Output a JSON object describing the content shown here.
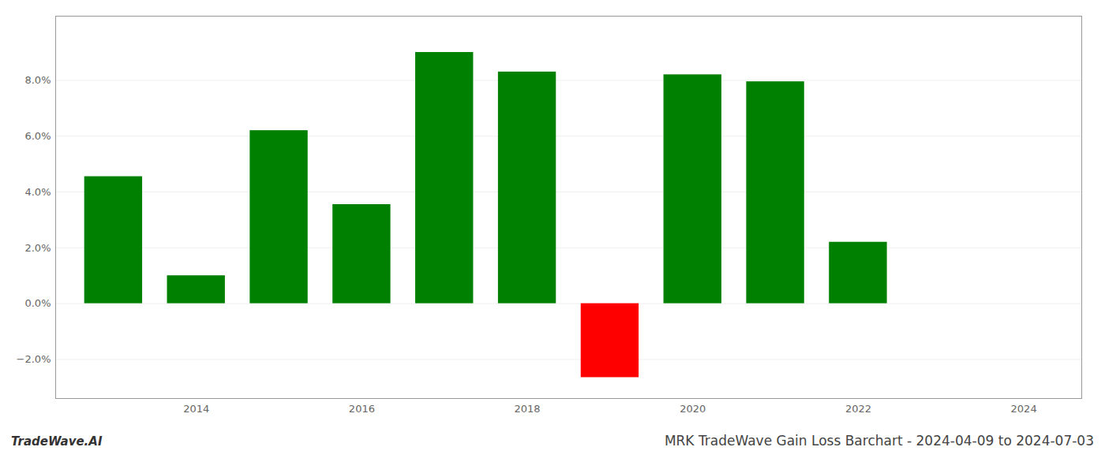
{
  "chart_data": {
    "type": "bar",
    "title": "MRK TradeWave Gain Loss Barchart - 2024-04-09 to 2024-07-03",
    "annotations": [
      "TradeWave.AI"
    ],
    "x": [
      2013,
      2014,
      2015,
      2016,
      2017,
      2018,
      2019,
      2020,
      2021,
      2022,
      2023
    ],
    "values": [
      0.0455,
      0.01,
      0.062,
      0.0355,
      0.09,
      0.083,
      -0.0265,
      0.082,
      0.0795,
      0.022,
      0.0
    ],
    "colors": [
      "#008000",
      "#008000",
      "#008000",
      "#008000",
      "#008000",
      "#008000",
      "#ff0000",
      "#008000",
      "#008000",
      "#008000",
      "#008000"
    ],
    "xlim": [
      2012.3,
      2024.7
    ],
    "xticks": [
      2014,
      2016,
      2018,
      2020,
      2022,
      2024
    ],
    "ylim": [
      -0.034,
      0.103
    ],
    "yticks": [
      {
        "value": -0.02,
        "label": "−2.0%"
      },
      {
        "value": 0.0,
        "label": "0.0%"
      },
      {
        "value": 0.02,
        "label": "2.0%"
      },
      {
        "value": 0.04,
        "label": "4.0%"
      },
      {
        "value": 0.06,
        "label": "6.0%"
      },
      {
        "value": 0.08,
        "label": "8.0%"
      }
    ],
    "grid": true
  }
}
